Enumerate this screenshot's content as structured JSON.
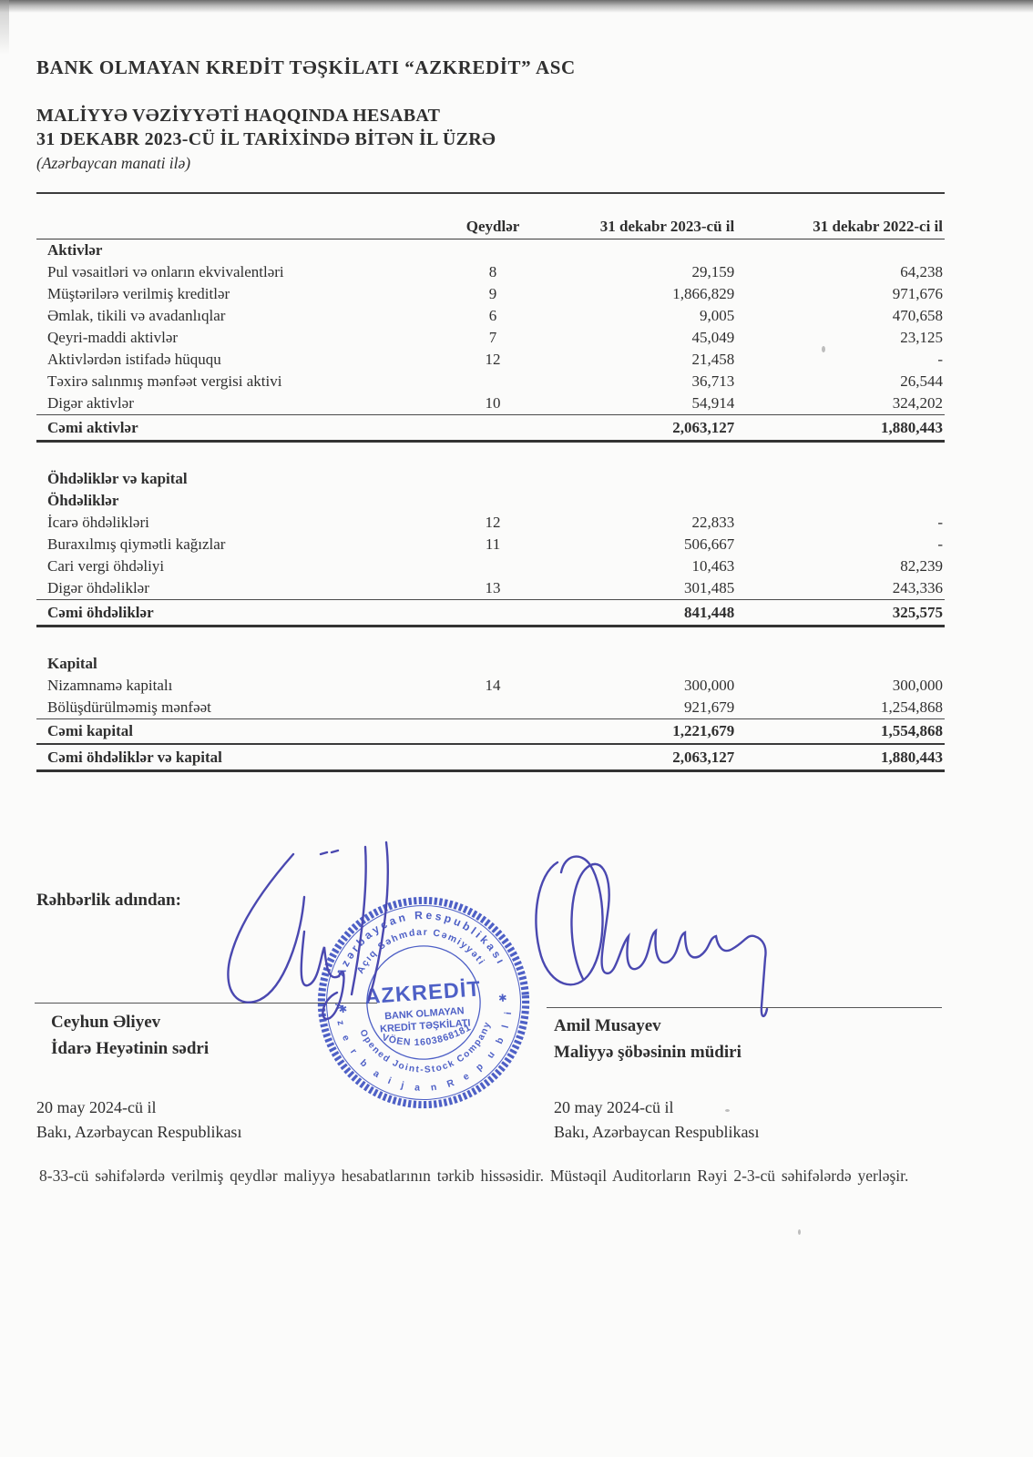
{
  "header": {
    "company": "BANK OLMAYAN KREDİT TƏŞKİLATI  “AZKREDİT” ASC",
    "title_line1": "MALİYYƏ VƏZİYYƏTİ HAQQINDA HESABAT",
    "title_line2": "31 DEKABR 2023-CÜ İL TARİXİNDƏ BİTƏN İL ÜZRƏ",
    "currency_note": "(Azərbaycan manati ilə)"
  },
  "table": {
    "columns": {
      "notes": "Qeydlər",
      "y2023": "31 dekabr 2023-cü il",
      "y2022": "31 dekabr 2022-ci il"
    },
    "rows": [
      {
        "kind": "section",
        "label": "Aktivlər",
        "note": "",
        "y2023": "",
        "y2022": ""
      },
      {
        "kind": "item",
        "label": "Pul vəsaitləri və onların ekvivalentləri",
        "note": "8",
        "y2023": "29,159",
        "y2022": "64,238"
      },
      {
        "kind": "item",
        "label": "Müştərilərə verilmiş kreditlər",
        "note": "9",
        "y2023": "1,866,829",
        "y2022": "971,676"
      },
      {
        "kind": "item",
        "label": "Əmlak, tikili və avadanlıqlar",
        "note": "6",
        "y2023": "9,005",
        "y2022": "470,658"
      },
      {
        "kind": "item",
        "label": "Qeyri-maddi aktivlər",
        "note": "7",
        "y2023": "45,049",
        "y2022": "23,125"
      },
      {
        "kind": "item",
        "label": "Aktivlərdən istifadə hüququ",
        "note": "12",
        "y2023": "21,458",
        "y2022": "-"
      },
      {
        "kind": "item",
        "label": "Təxirə salınmış mənfəət vergisi aktivi",
        "note": "",
        "y2023": "36,713",
        "y2022": "26,544"
      },
      {
        "kind": "item",
        "label": "Digər aktivlər",
        "note": "10",
        "y2023": "54,914",
        "y2022": "324,202"
      },
      {
        "kind": "total",
        "label": "Cəmi aktivlər",
        "note": "",
        "y2023": "2,063,127",
        "y2022": "1,880,443"
      },
      {
        "kind": "spacer",
        "label": "",
        "note": "",
        "y2023": "",
        "y2022": ""
      },
      {
        "kind": "section",
        "label": "Öhdəliklər və kapital",
        "note": "",
        "y2023": "",
        "y2022": ""
      },
      {
        "kind": "section",
        "label": "Öhdəliklər",
        "note": "",
        "y2023": "",
        "y2022": ""
      },
      {
        "kind": "item",
        "label": "İcarə öhdəlikləri",
        "note": "12",
        "y2023": "22,833",
        "y2022": "-"
      },
      {
        "kind": "item",
        "label": "Buraxılmış qiymətli kağızlar",
        "note": "11",
        "y2023": "506,667",
        "y2022": "-"
      },
      {
        "kind": "item",
        "label": "Cari vergi öhdəliyi",
        "note": "",
        "y2023": "10,463",
        "y2022": "82,239"
      },
      {
        "kind": "item",
        "label": "Digər öhdəliklər",
        "note": "13",
        "y2023": "301,485",
        "y2022": "243,336"
      },
      {
        "kind": "total",
        "label": "Cəmi öhdəliklər",
        "note": "",
        "y2023": "841,448",
        "y2022": "325,575"
      },
      {
        "kind": "spacer",
        "label": "",
        "note": "",
        "y2023": "",
        "y2022": ""
      },
      {
        "kind": "section",
        "label": "Kapital",
        "note": "",
        "y2023": "",
        "y2022": ""
      },
      {
        "kind": "item",
        "label": "Nizamnamə kapitalı",
        "note": "14",
        "y2023": "300,000",
        "y2022": "300,000"
      },
      {
        "kind": "item",
        "label": "Bölüşdürülməmiş mənfəət",
        "note": "",
        "y2023": "921,679",
        "y2022": "1,254,868"
      },
      {
        "kind": "subtotal",
        "label": "Cəmi kapital",
        "note": "",
        "y2023": "1,221,679",
        "y2022": "1,554,868"
      },
      {
        "kind": "grand_total",
        "label": "Cəmi öhdəliklər və kapital",
        "note": "",
        "y2023": "2,063,127",
        "y2022": "1,880,443"
      }
    ]
  },
  "signatures": {
    "heading": "Rəhbərlik adından:",
    "left": {
      "name": "Ceyhun Əliyev",
      "title": "İdarə Heyətinin sədri",
      "date": "20 may 2024-cü il",
      "place": "Bakı, Azərbaycan Respublikası"
    },
    "right": {
      "name": "Amil Musayev",
      "title": "Maliyyə şöbəsinin müdiri",
      "date": "20 may 2024-cü il",
      "place": "Bakı, Azərbaycan Respublikası"
    }
  },
  "stamp": {
    "outer_ring_top": "Azərbaycan Respublikası",
    "outer_ring_bottom": "A z e r b a i j a n   R e p u b l i c",
    "inner_ring_top": "Açıq Səhmdar Cəmiyyəti",
    "inner_ring_bottom": "Opened Joint-Stock Company",
    "center_name": "AZKREDİT",
    "center_line1": "BANK OLMAYAN",
    "center_line2": "KREDİT TƏŞKİLATI",
    "voen": "VÖEN 1603868181",
    "star_left": "✱",
    "star_right": "✱"
  },
  "footer": {
    "note": "8-33-cü səhifələrdə verilmiş qeydlər maliyyə hesabatlarının tərkib hissəsidir. Müstəqil Auditorların Rəyi 2-3-cü səhifələrdə yerləşir."
  },
  "colors": {
    "ink": "#2f2f2f",
    "stamp_blue": "#4053c2",
    "signature_blue": "#4a48b0"
  }
}
